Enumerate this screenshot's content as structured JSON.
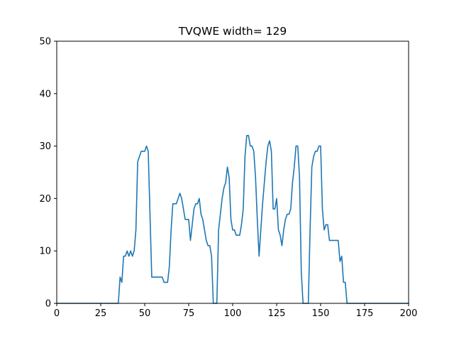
{
  "chart_data": {
    "type": "line",
    "title": "TVQWE width= 129",
    "xlabel": "",
    "ylabel": "",
    "xlim": [
      0,
      200
    ],
    "ylim": [
      0,
      50
    ],
    "xticks": [
      0,
      25,
      50,
      75,
      100,
      125,
      150,
      175,
      200
    ],
    "yticks": [
      0,
      10,
      20,
      30,
      40,
      50
    ],
    "grid": false,
    "legend": "none",
    "series": [
      {
        "color": "#1f77b4",
        "x": [
          0,
          1,
          2,
          3,
          4,
          5,
          6,
          7,
          8,
          9,
          10,
          11,
          12,
          13,
          14,
          15,
          16,
          17,
          18,
          19,
          20,
          21,
          22,
          23,
          24,
          25,
          26,
          27,
          28,
          29,
          30,
          31,
          32,
          33,
          34,
          35,
          36,
          37,
          38,
          39,
          40,
          41,
          42,
          43,
          44,
          45,
          46,
          47,
          48,
          49,
          50,
          51,
          52,
          53,
          54,
          55,
          56,
          57,
          58,
          59,
          60,
          61,
          62,
          63,
          64,
          65,
          66,
          67,
          68,
          69,
          70,
          71,
          72,
          73,
          74,
          75,
          76,
          77,
          78,
          79,
          80,
          81,
          82,
          83,
          84,
          85,
          86,
          87,
          88,
          89,
          90,
          91,
          92,
          93,
          94,
          95,
          96,
          97,
          98,
          99,
          100,
          101,
          102,
          103,
          104,
          105,
          106,
          107,
          108,
          109,
          110,
          111,
          112,
          113,
          114,
          115,
          116,
          117,
          118,
          119,
          120,
          121,
          122,
          123,
          124,
          125,
          126,
          127,
          128,
          129,
          130,
          131,
          132,
          133,
          134,
          135,
          136,
          137,
          138,
          139,
          140,
          141,
          142,
          143,
          144,
          145,
          146,
          147,
          148,
          149,
          150,
          151,
          152,
          153,
          154,
          155,
          156,
          157,
          158,
          159,
          160,
          161,
          162,
          163,
          164,
          165,
          166,
          167,
          168,
          169,
          170,
          171,
          172,
          173,
          174,
          175,
          176,
          177,
          178,
          179,
          180,
          181,
          182,
          183,
          184,
          185,
          186,
          187,
          188,
          189,
          190,
          191,
          192,
          193,
          194,
          195,
          196,
          197,
          198,
          199,
          200
        ],
        "y": [
          0,
          0,
          0,
          0,
          0,
          0,
          0,
          0,
          0,
          0,
          0,
          0,
          0,
          0,
          0,
          0,
          0,
          0,
          0,
          0,
          0,
          0,
          0,
          0,
          0,
          0,
          0,
          0,
          0,
          0,
          0,
          0,
          0,
          0,
          0,
          0,
          5,
          4,
          9,
          9,
          10,
          9,
          10,
          9,
          10,
          14,
          27,
          28,
          29,
          29,
          29,
          30,
          29,
          17,
          5,
          5,
          5,
          5,
          5,
          5,
          5,
          4,
          4,
          4,
          7,
          14,
          19,
          19,
          19,
          20,
          21,
          20,
          18,
          16,
          16,
          16,
          12,
          15,
          18,
          19,
          19,
          20,
          17,
          16,
          14,
          12,
          11,
          11,
          9,
          0,
          0,
          0,
          14,
          17,
          20,
          22,
          23,
          26,
          24,
          16,
          14,
          14,
          13,
          13,
          13,
          15,
          18,
          28,
          32,
          32,
          30,
          30,
          29,
          24,
          16,
          9,
          14,
          19,
          23,
          27,
          30,
          31,
          29,
          18,
          18,
          20,
          14,
          13,
          11,
          14,
          16,
          17,
          17,
          18,
          23,
          26,
          30,
          30,
          24,
          6,
          0,
          0,
          0,
          0,
          14,
          26,
          28,
          29,
          29,
          30,
          30,
          18,
          14,
          15,
          15,
          12,
          12,
          12,
          12,
          12,
          12,
          8,
          9,
          4,
          4,
          0,
          0,
          0,
          0,
          0,
          0,
          0,
          0,
          0,
          0,
          0,
          0,
          0,
          0,
          0,
          0,
          0,
          0,
          0,
          0,
          0,
          0,
          0,
          0,
          0,
          0,
          0,
          0,
          0,
          0,
          0,
          0,
          0,
          0,
          0,
          0
        ]
      }
    ]
  }
}
